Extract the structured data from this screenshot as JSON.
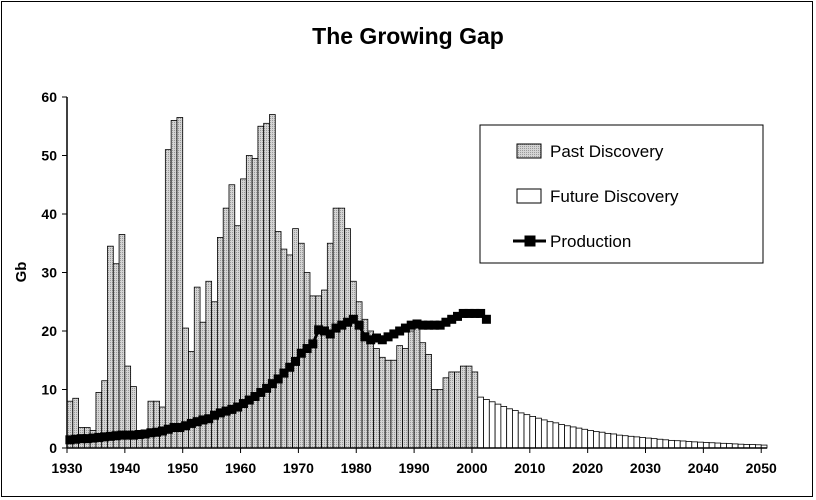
{
  "chart_data": {
    "type": "bar",
    "title": "The Growing Gap",
    "ylabel": "Gb",
    "xlabel": "",
    "xlim": [
      1930,
      2050
    ],
    "ylim": [
      0,
      60
    ],
    "xticks": [
      "1930",
      "1940",
      "1950",
      "1960",
      "1970",
      "1980",
      "1990",
      "2000",
      "2010",
      "2020",
      "2030",
      "2040",
      "2050"
    ],
    "yticks": [
      "0",
      "10",
      "20",
      "30",
      "40",
      "50",
      "60"
    ],
    "grid": false,
    "legend_position": "top-right",
    "series": [
      {
        "name": "Past Discovery",
        "kind": "bar",
        "color": "#c0c0c0",
        "x": [
          1930,
          1931,
          1932,
          1933,
          1934,
          1935,
          1936,
          1937,
          1938,
          1939,
          1940,
          1941,
          1942,
          1943,
          1944,
          1945,
          1946,
          1947,
          1948,
          1949,
          1950,
          1951,
          1952,
          1953,
          1954,
          1955,
          1956,
          1957,
          1958,
          1959,
          1960,
          1961,
          1962,
          1963,
          1964,
          1965,
          1966,
          1967,
          1968,
          1969,
          1970,
          1971,
          1972,
          1973,
          1974,
          1975,
          1976,
          1977,
          1978,
          1979,
          1980,
          1981,
          1982,
          1983,
          1984,
          1985,
          1986,
          1987,
          1988,
          1989,
          1990,
          1991,
          1992,
          1993,
          1994,
          1995,
          1996,
          1997,
          1998,
          1999,
          2000
        ],
        "values": [
          8,
          8.5,
          3.5,
          3.5,
          3,
          9.5,
          11.5,
          34.5,
          31.5,
          36.5,
          14,
          10.5,
          3,
          3,
          8,
          8,
          7,
          51,
          56,
          56.5,
          20.5,
          16.5,
          27.5,
          21.5,
          28.5,
          25,
          36,
          41,
          45,
          38,
          46,
          50,
          49.5,
          55,
          55.5,
          57,
          37,
          34,
          33,
          37.5,
          35,
          30,
          26,
          26,
          27,
          35,
          41,
          41,
          37.5,
          28.5,
          25,
          22,
          20,
          17,
          15.5,
          15,
          15,
          17.5,
          17,
          20,
          21,
          18,
          16,
          10,
          10,
          12,
          13,
          13,
          14,
          14,
          13
        ]
      },
      {
        "name": "Future Discovery",
        "kind": "bar",
        "color": "#ffffff",
        "x": [
          2001,
          2002,
          2003,
          2004,
          2005,
          2006,
          2007,
          2008,
          2009,
          2010,
          2011,
          2012,
          2013,
          2014,
          2015,
          2016,
          2017,
          2018,
          2019,
          2020,
          2021,
          2022,
          2023,
          2024,
          2025,
          2026,
          2027,
          2028,
          2029,
          2030,
          2031,
          2032,
          2033,
          2034,
          2035,
          2036,
          2037,
          2038,
          2039,
          2040,
          2041,
          2042,
          2043,
          2044,
          2045,
          2046,
          2047,
          2048,
          2049,
          2050
        ],
        "values": [
          8.7,
          8.3,
          7.9,
          7.5,
          7.1,
          6.7,
          6.4,
          6.0,
          5.7,
          5.4,
          5.1,
          4.8,
          4.5,
          4.3,
          4.0,
          3.8,
          3.6,
          3.4,
          3.2,
          3.0,
          2.8,
          2.7,
          2.5,
          2.4,
          2.2,
          2.1,
          2.0,
          1.9,
          1.8,
          1.7,
          1.6,
          1.5,
          1.4,
          1.3,
          1.25,
          1.2,
          1.1,
          1.05,
          1.0,
          0.95,
          0.9,
          0.85,
          0.8,
          0.75,
          0.7,
          0.65,
          0.6,
          0.6,
          0.55,
          0.5
        ]
      },
      {
        "name": "Production",
        "kind": "line",
        "color": "#000000",
        "x": [
          1930,
          1931,
          1932,
          1933,
          1934,
          1935,
          1936,
          1937,
          1938,
          1939,
          1940,
          1941,
          1942,
          1943,
          1944,
          1945,
          1946,
          1947,
          1948,
          1949,
          1950,
          1951,
          1952,
          1953,
          1954,
          1955,
          1956,
          1957,
          1958,
          1959,
          1960,
          1961,
          1962,
          1963,
          1964,
          1965,
          1966,
          1967,
          1968,
          1969,
          1970,
          1971,
          1972,
          1973,
          1974,
          1975,
          1976,
          1977,
          1978,
          1979,
          1980,
          1981,
          1982,
          1983,
          1984,
          1985,
          1986,
          1987,
          1988,
          1989,
          1990,
          1991,
          1992,
          1993,
          1994,
          1995,
          1996,
          1997,
          1998,
          1999,
          2000,
          2001,
          2002
        ],
        "values": [
          1.4,
          1.5,
          1.6,
          1.6,
          1.7,
          1.8,
          1.9,
          2.0,
          2.1,
          2.2,
          2.2,
          2.2,
          2.3,
          2.4,
          2.6,
          2.7,
          2.9,
          3.2,
          3.5,
          3.5,
          3.8,
          4.2,
          4.5,
          4.8,
          5.0,
          5.6,
          6.0,
          6.3,
          6.6,
          7.0,
          7.6,
          8.2,
          8.8,
          9.5,
          10.2,
          11.0,
          11.8,
          12.8,
          13.8,
          14.8,
          16.2,
          17.0,
          17.8,
          20.2,
          20.0,
          19.5,
          20.5,
          21.0,
          21.5,
          22.0,
          21.0,
          19.0,
          18.5,
          18.8,
          18.5,
          19.0,
          19.5,
          20.0,
          20.5,
          21.0,
          21.2,
          21.0,
          21.0,
          21.0,
          21.0,
          21.5,
          22.0,
          22.5,
          23.0,
          23.0,
          23.0,
          23.0,
          22.0
        ]
      }
    ]
  }
}
